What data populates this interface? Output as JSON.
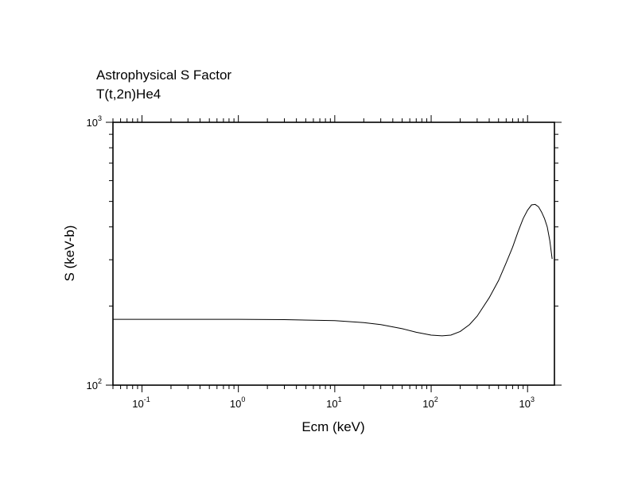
{
  "chart_data": {
    "type": "line",
    "title": "Astrophysical S Factor",
    "subtitle": "T(t,2n)He4",
    "xlabel": "Ecm (keV)",
    "ylabel": "S (keV-b)",
    "xscale": "log",
    "yscale": "log",
    "xlim": [
      0.05,
      1900
    ],
    "ylim": [
      100,
      1000
    ],
    "grid": false,
    "x_ticks": [
      {
        "base": "10",
        "exp": "-1"
      },
      {
        "base": "10",
        "exp": "0"
      },
      {
        "base": "10",
        "exp": "1"
      },
      {
        "base": "10",
        "exp": "2"
      },
      {
        "base": "10",
        "exp": "3"
      }
    ],
    "y_ticks": [
      {
        "base": "10",
        "exp": "2"
      },
      {
        "base": "10",
        "exp": "3"
      }
    ],
    "series": [
      {
        "x": [
          0.05,
          0.1,
          0.3,
          1,
          3,
          10,
          20,
          30,
          50,
          70,
          100,
          130,
          160,
          200,
          250,
          300,
          400,
          500,
          600,
          700,
          800,
          900,
          1000,
          1100,
          1200,
          1300,
          1400,
          1500,
          1600,
          1700,
          1800
        ],
        "y": [
          178,
          178,
          178,
          178,
          177.5,
          176,
          173,
          170,
          164,
          159,
          155,
          154,
          155,
          160,
          170,
          183,
          215,
          250,
          292,
          335,
          385,
          430,
          463,
          485,
          487,
          477,
          455,
          430,
          400,
          355,
          302
        ]
      }
    ]
  }
}
